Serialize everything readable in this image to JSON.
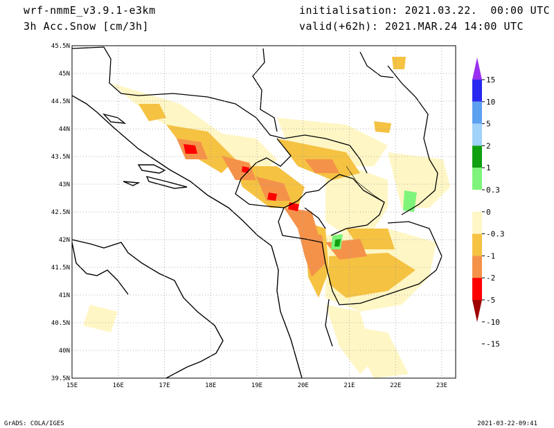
{
  "header": {
    "model": "wrf-nmmE_v3.9.1-e3km",
    "variable": "3h Acc.Snow [cm/3h]",
    "init": "initialisation: 2021.03.22.  00:00 UTC",
    "valid": "valid(+62h): 2021.MAR.24 14:00 UTC"
  },
  "map": {
    "lon_range": [
      15,
      23.3
    ],
    "lat_range": [
      39.5,
      45.5
    ],
    "lon_ticks": [
      {
        "value": 15,
        "label": "15E"
      },
      {
        "value": 16,
        "label": "16E"
      },
      {
        "value": 17,
        "label": "17E"
      },
      {
        "value": 18,
        "label": "18E"
      },
      {
        "value": 19,
        "label": "19E"
      },
      {
        "value": 20,
        "label": "20E"
      },
      {
        "value": 21,
        "label": "21E"
      },
      {
        "value": 22,
        "label": "22E"
      },
      {
        "value": 23,
        "label": "23E"
      }
    ],
    "lat_ticks": [
      {
        "value": 39.5,
        "label": "39.5N"
      },
      {
        "value": 40,
        "label": "40N"
      },
      {
        "value": 40.5,
        "label": "40.5N"
      },
      {
        "value": 41,
        "label": "41N"
      },
      {
        "value": 41.5,
        "label": "41.5N"
      },
      {
        "value": 42,
        "label": "42N"
      },
      {
        "value": 42.5,
        "label": "42.5N"
      },
      {
        "value": 43,
        "label": "43N"
      },
      {
        "value": 43.5,
        "label": "43.5N"
      },
      {
        "value": 44,
        "label": "44N"
      },
      {
        "value": 44.5,
        "label": "44.5N"
      },
      {
        "value": 45,
        "label": "45N"
      },
      {
        "value": 45.5,
        "label": "45.5N"
      }
    ],
    "grid": true
  },
  "legend": {
    "colors": [
      "#a00000",
      "#ff0000",
      "#f5924a",
      "#f5c242",
      "#fff6c5",
      "#ffffff",
      "#7ef57a",
      "#10a010",
      "#a0d2fa",
      "#5ca0f0",
      "#2828f0",
      "#9b30f0"
    ],
    "labels": [
      "15",
      "10",
      "5",
      "2",
      "1",
      "0.3",
      "0",
      "-0.3",
      "-1",
      "-2",
      "-5",
      "-10",
      "-15"
    ]
  },
  "footer": {
    "left": "GrADS: COLA/IGES",
    "right": "2021-03-22-09:41"
  }
}
